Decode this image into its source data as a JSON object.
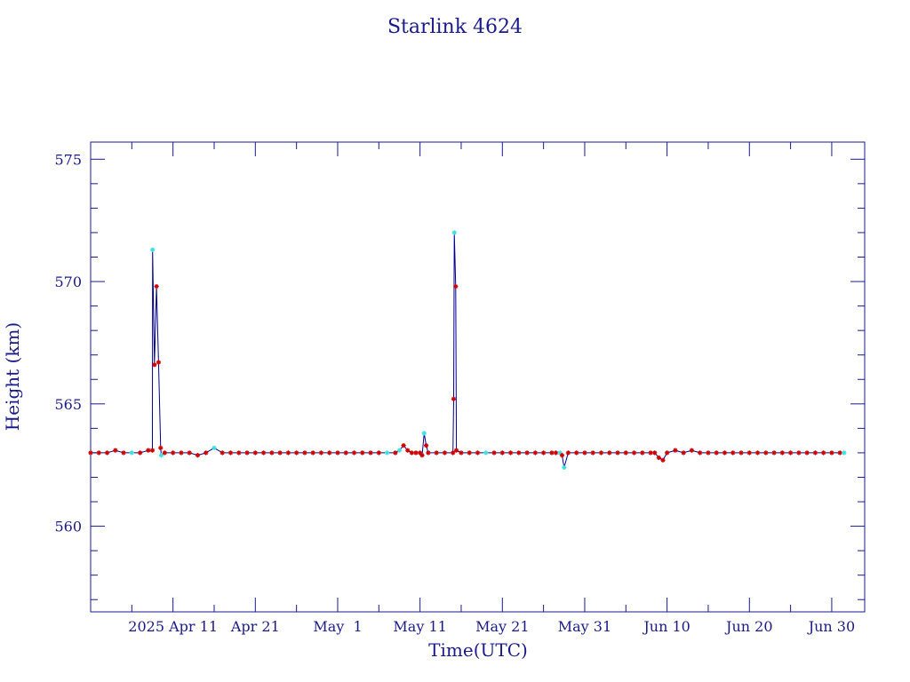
{
  "chart_data": {
    "type": "line",
    "title": "Starlink 4624",
    "xlabel": "Time(UTC)",
    "ylabel": "Height (km)",
    "x_unit": "date (2025, UTC)",
    "xlim": [
      "2025-04-01",
      "2025-07-04"
    ],
    "ylim": [
      556.5,
      575.7
    ],
    "y_ticks": [
      560,
      565,
      570,
      575
    ],
    "x_ticks": [
      {
        "date": "2025-04-11",
        "label": "2025 Apr 11"
      },
      {
        "date": "2025-04-21",
        "label": "Apr 21"
      },
      {
        "date": "2025-05-01",
        "label": "May  1"
      },
      {
        "date": "2025-05-11",
        "label": "May 11"
      },
      {
        "date": "2025-05-21",
        "label": "May 21"
      },
      {
        "date": "2025-05-31",
        "label": "May 31"
      },
      {
        "date": "2025-06-10",
        "label": "Jun 10"
      },
      {
        "date": "2025-06-20",
        "label": "Jun 20"
      },
      {
        "date": "2025-06-30",
        "label": "Jun 30"
      }
    ],
    "grid": false,
    "colors": {
      "axes": "#1a1a8c",
      "line": "#00008b",
      "marker": "#cc0000",
      "highlight": "#40e0e0"
    },
    "series": [
      {
        "line_color": "#00008b",
        "marker_color": "#cc0000",
        "highlight_color": "#40e0e0",
        "points": [
          [
            "2025-04-01",
            563.0,
            0
          ],
          [
            "2025-04-02",
            563.0,
            0
          ],
          [
            "2025-04-03",
            563.0,
            0
          ],
          [
            "2025-04-04",
            563.1,
            0
          ],
          [
            "2025-04-05",
            563.0,
            0
          ],
          [
            "2025-04-06",
            563.0,
            1
          ],
          [
            "2025-04-07",
            563.0,
            0
          ],
          [
            "2025-04-08",
            563.1,
            0
          ],
          [
            "2025-04-08T12:00",
            563.1,
            0
          ],
          [
            "2025-04-08T12:30",
            571.3,
            1
          ],
          [
            "2025-04-08T18:00",
            566.6,
            0
          ],
          [
            "2025-04-09",
            569.8,
            0
          ],
          [
            "2025-04-09T06:00",
            566.7,
            0
          ],
          [
            "2025-04-09T12:00",
            563.2,
            0
          ],
          [
            "2025-04-09T14:00",
            562.9,
            1
          ],
          [
            "2025-04-10",
            563.0,
            0
          ],
          [
            "2025-04-11",
            563.0,
            0
          ],
          [
            "2025-04-12",
            563.0,
            0
          ],
          [
            "2025-04-13",
            563.0,
            0
          ],
          [
            "2025-04-14",
            562.9,
            0
          ],
          [
            "2025-04-15",
            563.0,
            0
          ],
          [
            "2025-04-16",
            563.2,
            1
          ],
          [
            "2025-04-17",
            563.0,
            0
          ],
          [
            "2025-04-18",
            563.0,
            0
          ],
          [
            "2025-04-19",
            563.0,
            0
          ],
          [
            "2025-04-20",
            563.0,
            0
          ],
          [
            "2025-04-21",
            563.0,
            0
          ],
          [
            "2025-04-22",
            563.0,
            0
          ],
          [
            "2025-04-23",
            563.0,
            0
          ],
          [
            "2025-04-24",
            563.0,
            0
          ],
          [
            "2025-04-25",
            563.0,
            0
          ],
          [
            "2025-04-26",
            563.0,
            0
          ],
          [
            "2025-04-27",
            563.0,
            0
          ],
          [
            "2025-04-28",
            563.0,
            0
          ],
          [
            "2025-04-29",
            563.0,
            0
          ],
          [
            "2025-04-30",
            563.0,
            0
          ],
          [
            "2025-05-01",
            563.0,
            0
          ],
          [
            "2025-05-02",
            563.0,
            0
          ],
          [
            "2025-05-03",
            563.0,
            0
          ],
          [
            "2025-05-04",
            563.0,
            0
          ],
          [
            "2025-05-05",
            563.0,
            0
          ],
          [
            "2025-05-06",
            563.0,
            0
          ],
          [
            "2025-05-07",
            563.0,
            1
          ],
          [
            "2025-05-08",
            563.0,
            0
          ],
          [
            "2025-05-08T12:00",
            563.1,
            1
          ],
          [
            "2025-05-09",
            563.3,
            0
          ],
          [
            "2025-05-09T12:00",
            563.1,
            0
          ],
          [
            "2025-05-10",
            563.0,
            0
          ],
          [
            "2025-05-10T12:00",
            563.0,
            0
          ],
          [
            "2025-05-11",
            563.0,
            0
          ],
          [
            "2025-05-11T06:00",
            562.9,
            0
          ],
          [
            "2025-05-11T12:00",
            563.8,
            1
          ],
          [
            "2025-05-11T18:00",
            563.3,
            0
          ],
          [
            "2025-05-12",
            563.0,
            0
          ],
          [
            "2025-05-13",
            563.0,
            0
          ],
          [
            "2025-05-14",
            563.0,
            0
          ],
          [
            "2025-05-15",
            563.0,
            0
          ],
          [
            "2025-05-15T02:00",
            565.2,
            0
          ],
          [
            "2025-05-15T04:00",
            572.0,
            1
          ],
          [
            "2025-05-15T08:00",
            569.8,
            0
          ],
          [
            "2025-05-15T10:00",
            563.1,
            0
          ],
          [
            "2025-05-16",
            563.0,
            0
          ],
          [
            "2025-05-17",
            563.0,
            0
          ],
          [
            "2025-05-18",
            563.0,
            0
          ],
          [
            "2025-05-19",
            563.0,
            1
          ],
          [
            "2025-05-20",
            563.0,
            0
          ],
          [
            "2025-05-21",
            563.0,
            0
          ],
          [
            "2025-05-22",
            563.0,
            0
          ],
          [
            "2025-05-23",
            563.0,
            0
          ],
          [
            "2025-05-24",
            563.0,
            0
          ],
          [
            "2025-05-25",
            563.0,
            0
          ],
          [
            "2025-05-26",
            563.0,
            0
          ],
          [
            "2025-05-27",
            563.0,
            0
          ],
          [
            "2025-05-27T12:00",
            563.0,
            0
          ],
          [
            "2025-05-28",
            563.0,
            1
          ],
          [
            "2025-05-28T06:00",
            562.9,
            0
          ],
          [
            "2025-05-28T12:00",
            562.4,
            1
          ],
          [
            "2025-05-29",
            563.0,
            0
          ],
          [
            "2025-05-30",
            563.0,
            0
          ],
          [
            "2025-05-31",
            563.0,
            0
          ],
          [
            "2025-06-01",
            563.0,
            0
          ],
          [
            "2025-06-02",
            563.0,
            0
          ],
          [
            "2025-06-03",
            563.0,
            0
          ],
          [
            "2025-06-04",
            563.0,
            0
          ],
          [
            "2025-06-05",
            563.0,
            0
          ],
          [
            "2025-06-06",
            563.0,
            0
          ],
          [
            "2025-06-07",
            563.0,
            0
          ],
          [
            "2025-06-08",
            563.0,
            0
          ],
          [
            "2025-06-08T12:00",
            563.0,
            0
          ],
          [
            "2025-06-09",
            562.8,
            0
          ],
          [
            "2025-06-09T12:00",
            562.7,
            0
          ],
          [
            "2025-06-10",
            563.0,
            0
          ],
          [
            "2025-06-11",
            563.1,
            0
          ],
          [
            "2025-06-12",
            563.0,
            0
          ],
          [
            "2025-06-13",
            563.1,
            0
          ],
          [
            "2025-06-14",
            563.0,
            0
          ],
          [
            "2025-06-15",
            563.0,
            0
          ],
          [
            "2025-06-16",
            563.0,
            0
          ],
          [
            "2025-06-17",
            563.0,
            0
          ],
          [
            "2025-06-18",
            563.0,
            0
          ],
          [
            "2025-06-19",
            563.0,
            0
          ],
          [
            "2025-06-20",
            563.0,
            0
          ],
          [
            "2025-06-21",
            563.0,
            0
          ],
          [
            "2025-06-22",
            563.0,
            0
          ],
          [
            "2025-06-23",
            563.0,
            0
          ],
          [
            "2025-06-24",
            563.0,
            0
          ],
          [
            "2025-06-25",
            563.0,
            0
          ],
          [
            "2025-06-26",
            563.0,
            0
          ],
          [
            "2025-06-27",
            563.0,
            0
          ],
          [
            "2025-06-28",
            563.0,
            0
          ],
          [
            "2025-06-29",
            563.0,
            0
          ],
          [
            "2025-06-30",
            563.0,
            0
          ],
          [
            "2025-07-01",
            563.0,
            0
          ],
          [
            "2025-07-01T12:00",
            563.0,
            1
          ]
        ]
      }
    ]
  }
}
